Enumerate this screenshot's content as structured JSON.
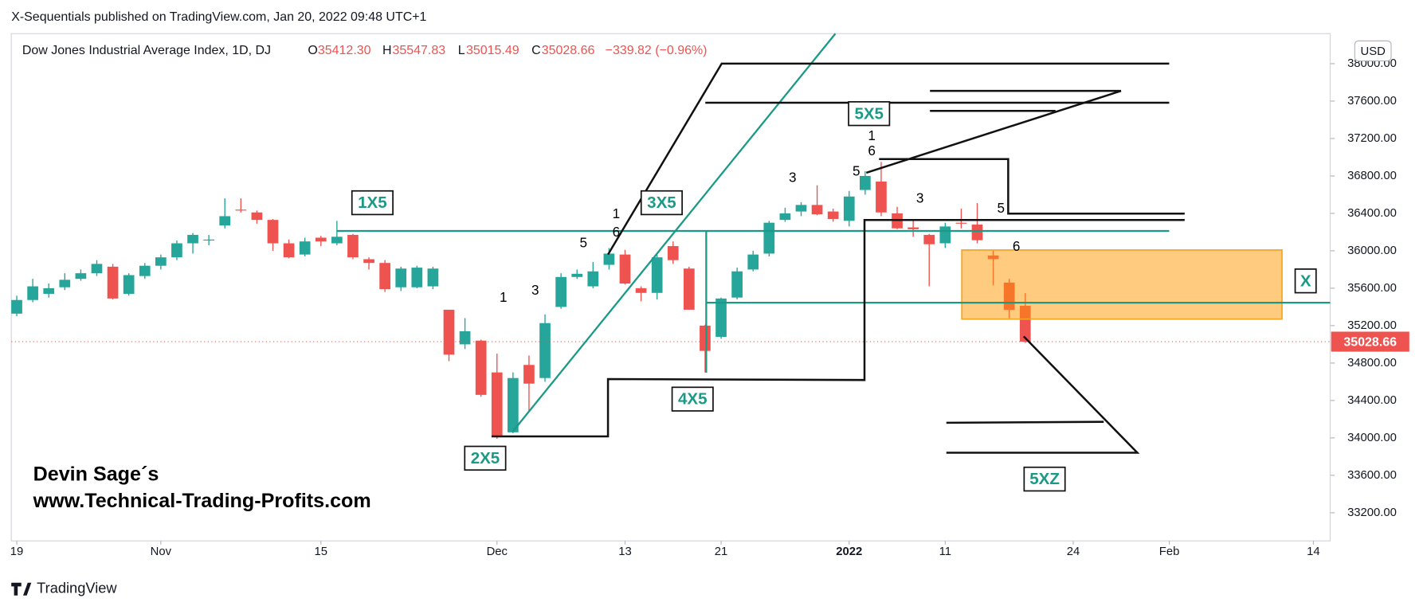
{
  "header": {
    "published": "X-Sequentials published on TradingView.com, Jan 20, 2022 09:48 UTC+1"
  },
  "footer": {
    "brand": "TradingView"
  },
  "watermark": {
    "line1": "Devin Sage´s",
    "line2": "www.Technical-Trading-Profits.com"
  },
  "legend": {
    "title": "Dow Jones Industrial Average Index, 1D, DJ",
    "o_key": "O",
    "o": "35412.30",
    "h_key": "H",
    "h": "35547.83",
    "l_key": "L",
    "l": "35015.49",
    "c_key": "C",
    "c": "35028.66",
    "change": "−339.82 (−0.96%)"
  },
  "annotations": {
    "boxes": [
      "1X5",
      "2X5",
      "3X5",
      "4X5",
      "5X5",
      "5XZ",
      "X"
    ],
    "counts": [
      "1",
      "3",
      "5",
      "1",
      "6",
      "3",
      "1",
      "6",
      "5",
      "3",
      "5",
      "6"
    ]
  },
  "chart_data": {
    "type": "candlestick",
    "currency": "USD",
    "x": [
      0,
      1,
      2,
      3,
      4,
      5,
      6,
      7,
      8,
      9,
      10,
      11,
      12,
      13,
      14,
      15,
      16,
      17,
      18,
      19,
      20,
      21,
      22,
      23,
      24,
      25,
      26,
      27,
      28,
      29,
      30,
      31,
      32,
      33,
      34,
      35,
      36,
      37,
      38,
      39,
      40,
      41,
      42,
      43,
      44,
      45,
      46,
      47,
      48,
      49,
      50,
      51,
      52,
      53,
      54,
      55,
      56,
      57,
      58,
      59,
      60,
      61,
      62,
      63
    ],
    "open": [
      35328,
      35474,
      35540,
      35610,
      35700,
      35760,
      35830,
      35540,
      35730,
      35840,
      35930,
      36080,
      36110,
      36270,
      36440,
      36410,
      36330,
      36080,
      35960,
      36140,
      36080,
      36170,
      35910,
      35870,
      35610,
      35610,
      35620,
      35370,
      35000,
      35040,
      34700,
      34060,
      34780,
      34640,
      35400,
      35720,
      35620,
      35850,
      35960,
      35600,
      35550,
      36050,
      35810,
      35200,
      35080,
      35500,
      35800,
      35970,
      36330,
      36420,
      36490,
      36420,
      36320,
      36650,
      36740,
      36400,
      36250,
      36170,
      36080,
      36300,
      36280,
      35950,
      35660,
      35412.3
    ],
    "high": [
      35520,
      35700,
      35650,
      35760,
      35800,
      35900,
      35860,
      35760,
      35870,
      35960,
      36110,
      36190,
      36170,
      36560,
      36560,
      36430,
      36340,
      36120,
      36140,
      36160,
      36320,
      36180,
      35930,
      35900,
      35830,
      35840,
      35830,
      35370,
      35280,
      35050,
      34900,
      34700,
      34880,
      35320,
      35760,
      35800,
      35880,
      36030,
      36010,
      35620,
      35960,
      36100,
      35830,
      35210,
      35500,
      35820,
      36000,
      36320,
      36460,
      36520,
      36700,
      36450,
      36640,
      36850,
      36950,
      36470,
      36320,
      36180,
      36300,
      36450,
      36510,
      36000,
      35700,
      35547.83
    ],
    "low": [
      35300,
      35450,
      35500,
      35580,
      35680,
      35730,
      35480,
      35520,
      35700,
      35800,
      35900,
      35970,
      36060,
      36240,
      36410,
      36290,
      36000,
      35920,
      35940,
      36050,
      36060,
      35910,
      35800,
      35560,
      35570,
      35600,
      35590,
      34820,
      34950,
      34440,
      33990,
      34050,
      34280,
      34600,
      35380,
      35700,
      35600,
      35800,
      35640,
      35460,
      35480,
      35860,
      35370,
      34700,
      35060,
      35480,
      35780,
      35940,
      36310,
      36370,
      36380,
      36310,
      36260,
      36600,
      36370,
      36230,
      36150,
      35620,
      36030,
      36240,
      36080,
      35630,
      35280,
      35015.49
    ],
    "close": [
      35474,
      35620,
      35600,
      35690,
      35760,
      35860,
      35490,
      35740,
      35840,
      35930,
      36080,
      36170,
      36120,
      36370,
      36430,
      36330,
      36080,
      35930,
      36100,
      36100,
      36150,
      35930,
      35870,
      35590,
      35810,
      35820,
      35810,
      34890,
      35140,
      34460,
      34020,
      34640,
      34580,
      35227,
      35720,
      35754,
      35780,
      35970,
      35650,
      35550,
      35930,
      35900,
      35370,
      34930,
      35490,
      35780,
      35960,
      36300,
      36400,
      36490,
      36390,
      36340,
      36580,
      36800,
      36410,
      36240,
      36230,
      36070,
      36260,
      36290,
      36113,
      35911,
      35368,
      35028.66
    ],
    "up_color": "#26a69a",
    "down_color": "#ef5350",
    "xlim": [
      -0.34,
      82.05
    ],
    "xticks": [
      {
        "value": 0,
        "label": "19"
      },
      {
        "value": 9,
        "label": "Nov"
      },
      {
        "value": 19,
        "label": "15"
      },
      {
        "value": 30,
        "label": "Dec"
      },
      {
        "value": 38,
        "label": "13"
      },
      {
        "value": 44,
        "label": "21"
      },
      {
        "value": 52,
        "label": "2022"
      },
      {
        "value": 58,
        "label": "11"
      },
      {
        "value": 66,
        "label": "24"
      },
      {
        "value": 72,
        "label": "Feb"
      },
      {
        "value": 81,
        "label": "14"
      }
    ],
    "ylim": [
      32899,
      38321
    ],
    "yticks": [
      {
        "value": 33200,
        "label": "33200.00"
      },
      {
        "value": 33600,
        "label": "33600.00"
      },
      {
        "value": 34000,
        "label": "34000.00"
      },
      {
        "value": 34400,
        "label": "34400.00"
      },
      {
        "value": 34800,
        "label": "34800.00"
      },
      {
        "value": 35200,
        "label": "35200.00"
      },
      {
        "value": 35600,
        "label": "35600.00"
      },
      {
        "value": 36000,
        "label": "36000.00"
      },
      {
        "value": 36400,
        "label": "36400.00"
      },
      {
        "value": 36800,
        "label": "36800.00"
      },
      {
        "value": 37200,
        "label": "37200.00"
      },
      {
        "value": 37600,
        "label": "37600.00"
      },
      {
        "value": 38000,
        "label": "38000.00"
      }
    ],
    "grid": false
  }
}
